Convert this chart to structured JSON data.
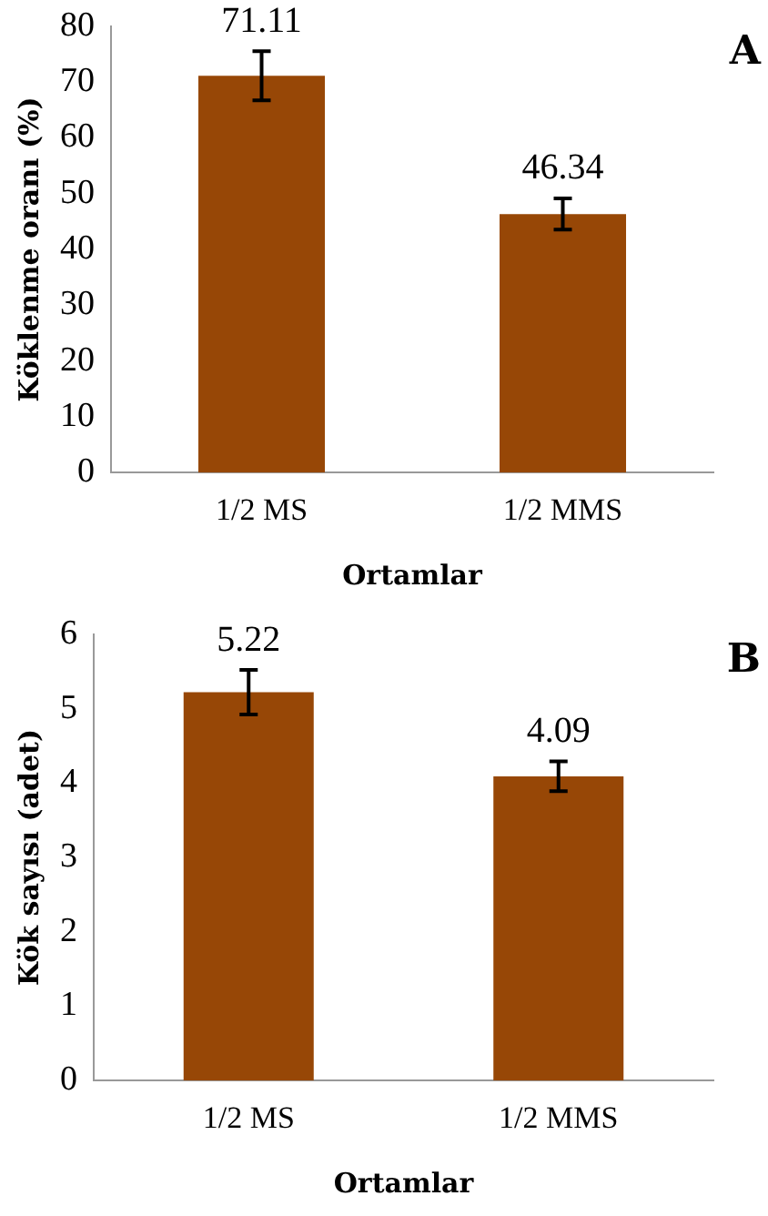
{
  "chart_data": [
    {
      "type": "bar",
      "categories": [
        "1/2 MS",
        "1/2 MMS"
      ],
      "values": [
        71.11,
        46.34
      ],
      "errors": [
        4.4,
        2.8
      ],
      "color": "#974706",
      "xlabel": "Ortamlar",
      "ylabel": "Köklenme oranı (%)",
      "ylim": [
        0,
        80
      ],
      "yticks": [
        0,
        10,
        20,
        30,
        40,
        50,
        60,
        70,
        80
      ],
      "grid": false,
      "legend": false,
      "data_labels": true,
      "annotations": [
        "A"
      ]
    },
    {
      "type": "bar",
      "categories": [
        "1/2 MS",
        "1/2 MMS"
      ],
      "values": [
        5.22,
        4.09
      ],
      "errors": [
        0.3,
        0.2
      ],
      "color": "#974706",
      "xlabel": "Ortamlar",
      "ylabel": "Kök sayısı (adet)",
      "ylim": [
        0,
        6
      ],
      "yticks": [
        0,
        1,
        2,
        3,
        4,
        5,
        6
      ],
      "grid": false,
      "legend": false,
      "data_labels": true,
      "annotations": [
        "B"
      ]
    }
  ]
}
